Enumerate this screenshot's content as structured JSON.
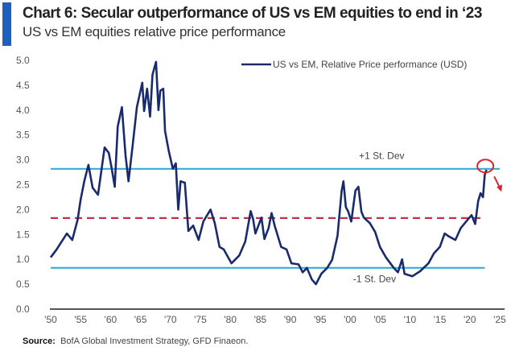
{
  "header": {
    "title": "Chart 6: Secular outperformance of US vs EM equities to end in ‘23",
    "subtitle": "US vs EM equities relative price performance"
  },
  "source": {
    "label": "Source:",
    "text": "BofA Global Investment Strategy, GFD Finaeon."
  },
  "colors": {
    "accent": "#1f5fbf",
    "series": "#1a2b6d",
    "std_lines": "#2aa7d6",
    "mean_line": "#c0304a",
    "highlight": "#d9262c"
  },
  "chart_data": {
    "type": "line",
    "title": "Chart 6: Secular outperformance of US vs EM equities to end in ‘23",
    "subtitle": "US vs EM equities relative price performance",
    "xlim": [
      1950,
      2025
    ],
    "ylim": [
      0,
      5.0
    ],
    "x_ticks": [
      "'50",
      "'55",
      "'60",
      "'65",
      "'70",
      "'75",
      "'80",
      "'85",
      "'90",
      "'95",
      "'00",
      "'05",
      "'10",
      "'15",
      "'20",
      "'25"
    ],
    "y_ticks": [
      "0.0",
      "0.5",
      "1.0",
      "1.5",
      "2.0",
      "2.5",
      "3.0",
      "3.5",
      "4.0",
      "4.5",
      "5.0"
    ],
    "grid": false,
    "legend": {
      "placement": "top-right",
      "entries": [
        "US vs EM, Relative Price performance (USD)"
      ]
    },
    "series": [
      {
        "name": "US vs EM, Relative Price performance (USD)",
        "points": [
          [
            1950.0,
            1.04
          ],
          [
            1951.0,
            1.2
          ],
          [
            1952.7,
            1.52
          ],
          [
            1953.6,
            1.39
          ],
          [
            1954.5,
            1.8
          ],
          [
            1955.0,
            2.2
          ],
          [
            1955.6,
            2.57
          ],
          [
            1956.3,
            2.9
          ],
          [
            1957.0,
            2.44
          ],
          [
            1957.9,
            2.3
          ],
          [
            1959.0,
            3.25
          ],
          [
            1959.7,
            3.14
          ],
          [
            1960.2,
            2.82
          ],
          [
            1960.7,
            2.46
          ],
          [
            1961.2,
            3.67
          ],
          [
            1961.9,
            4.06
          ],
          [
            1962.5,
            3.09
          ],
          [
            1963.0,
            2.57
          ],
          [
            1963.7,
            3.3
          ],
          [
            1964.4,
            4.06
          ],
          [
            1965.3,
            4.55
          ],
          [
            1965.6,
            3.98
          ],
          [
            1966.1,
            4.43
          ],
          [
            1966.6,
            3.87
          ],
          [
            1967.0,
            4.71
          ],
          [
            1967.6,
            4.97
          ],
          [
            1968.0,
            4.0
          ],
          [
            1968.3,
            4.39
          ],
          [
            1968.8,
            4.43
          ],
          [
            1969.1,
            3.58
          ],
          [
            1969.7,
            3.19
          ],
          [
            1970.4,
            2.82
          ],
          [
            1970.9,
            2.93
          ],
          [
            1971.3,
            2.0
          ],
          [
            1971.7,
            2.57
          ],
          [
            1972.4,
            2.54
          ],
          [
            1973.0,
            1.57
          ],
          [
            1973.8,
            1.68
          ],
          [
            1974.7,
            1.39
          ],
          [
            1975.5,
            1.76
          ],
          [
            1976.7,
            2.0
          ],
          [
            1977.4,
            1.73
          ],
          [
            1978.2,
            1.25
          ],
          [
            1978.9,
            1.2
          ],
          [
            1980.2,
            0.92
          ],
          [
            1981.5,
            1.08
          ],
          [
            1982.5,
            1.36
          ],
          [
            1983.4,
            1.97
          ],
          [
            1983.8,
            1.81
          ],
          [
            1984.2,
            1.52
          ],
          [
            1985.2,
            1.84
          ],
          [
            1985.7,
            1.41
          ],
          [
            1986.4,
            1.63
          ],
          [
            1986.9,
            1.93
          ],
          [
            1987.4,
            1.68
          ],
          [
            1988.5,
            1.25
          ],
          [
            1989.4,
            1.2
          ],
          [
            1990.2,
            0.92
          ],
          [
            1991.4,
            0.9
          ],
          [
            1992.1,
            0.74
          ],
          [
            1992.8,
            0.83
          ],
          [
            1993.6,
            0.6
          ],
          [
            1994.3,
            0.5
          ],
          [
            1995.2,
            0.71
          ],
          [
            1996.2,
            0.83
          ],
          [
            1997.0,
            0.99
          ],
          [
            1997.9,
            1.47
          ],
          [
            1998.6,
            2.38
          ],
          [
            1998.9,
            2.57
          ],
          [
            1999.3,
            2.05
          ],
          [
            1999.7,
            1.96
          ],
          [
            2000.2,
            1.76
          ],
          [
            2000.9,
            2.38
          ],
          [
            2001.4,
            2.46
          ],
          [
            2001.9,
            1.96
          ],
          [
            2002.3,
            1.84
          ],
          [
            2003.3,
            1.73
          ],
          [
            2004.2,
            1.55
          ],
          [
            2005.0,
            1.25
          ],
          [
            2006.0,
            1.04
          ],
          [
            2007.3,
            0.83
          ],
          [
            2008.0,
            0.74
          ],
          [
            2008.7,
            1.0
          ],
          [
            2009.1,
            0.71
          ],
          [
            2010.4,
            0.66
          ],
          [
            2011.7,
            0.76
          ],
          [
            2013.1,
            0.92
          ],
          [
            2014.0,
            1.12
          ],
          [
            2015.0,
            1.25
          ],
          [
            2015.8,
            1.52
          ],
          [
            2016.4,
            1.47
          ],
          [
            2017.6,
            1.39
          ],
          [
            2018.5,
            1.63
          ],
          [
            2019.4,
            1.76
          ],
          [
            2020.3,
            1.89
          ],
          [
            2020.9,
            1.71
          ],
          [
            2021.4,
            2.17
          ],
          [
            2021.8,
            2.33
          ],
          [
            2022.2,
            2.25
          ],
          [
            2022.5,
            2.7
          ],
          [
            2022.8,
            2.8
          ]
        ]
      }
    ],
    "reference_lines": [
      {
        "label": "+1 St. Dev",
        "value": 2.82,
        "style": "solid"
      },
      {
        "label": "",
        "value": 1.83,
        "style": "dashed"
      },
      {
        "label": "-1 St. Dev",
        "value": 0.83,
        "style": "solid"
      }
    ],
    "annotations": [
      {
        "type": "circle-and-down-arrow",
        "at": [
          2022.6,
          2.65
        ]
      }
    ]
  }
}
